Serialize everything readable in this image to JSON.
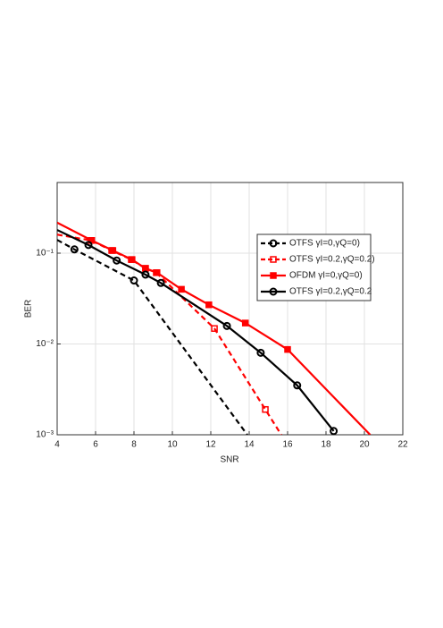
{
  "chart_data": {
    "type": "line",
    "xlabel": "SNR",
    "ylabel": "BER",
    "xlim": [
      4,
      22
    ],
    "xticks": [
      4,
      6,
      8,
      10,
      12,
      14,
      16,
      18,
      20,
      22
    ],
    "ylim": [
      0.001,
      0.6
    ],
    "log_y": true,
    "yticks": [
      {
        "value": 0.001,
        "label": "10⁻³"
      },
      {
        "value": 0.01,
        "label": "10⁻²"
      },
      {
        "value": 0.1,
        "label": "10⁻¹"
      }
    ],
    "grid": true,
    "legend": "upper right",
    "series": [
      {
        "name": "OTFS γI=0,γQ=0)",
        "color": "#000000",
        "dash": true,
        "marker": "circle",
        "x": [
          4,
          4.9,
          8.0,
          13.9
        ],
        "values": [
          0.14,
          0.11,
          0.05,
          0.001
        ]
      },
      {
        "name": "OTFS γI=0.2,γQ=0.2)",
        "color": "#ff0000",
        "dash": true,
        "marker": "square",
        "x": [
          4,
          5.77,
          6.84,
          7.86,
          8.6,
          9.16,
          12.19,
          14.84,
          15.67
        ],
        "values": [
          0.16,
          0.138,
          0.107,
          0.085,
          0.068,
          0.061,
          0.0148,
          0.0019,
          0.001
        ]
      },
      {
        "name": "OFDM γI=0,γQ=0)",
        "color": "#ff0000",
        "dash": false,
        "marker": "square",
        "x": [
          4,
          5.8,
          6.9,
          7.9,
          8.6,
          9.2,
          10.47,
          11.9,
          13.8,
          16.0,
          20.3
        ],
        "values": [
          0.217,
          0.138,
          0.107,
          0.085,
          0.068,
          0.061,
          0.04,
          0.027,
          0.017,
          0.0087,
          0.001
        ]
      },
      {
        "name": "OTFS γI=0.2,γQ=0.2",
        "color": "#000000",
        "dash": false,
        "marker": "circle",
        "x": [
          4,
          5.63,
          7.1,
          8.6,
          9.4,
          12.84,
          14.6,
          16.5,
          18.4
        ],
        "values": [
          0.18,
          0.123,
          0.083,
          0.058,
          0.047,
          0.0158,
          0.008,
          0.0035,
          0.0011
        ]
      }
    ]
  }
}
